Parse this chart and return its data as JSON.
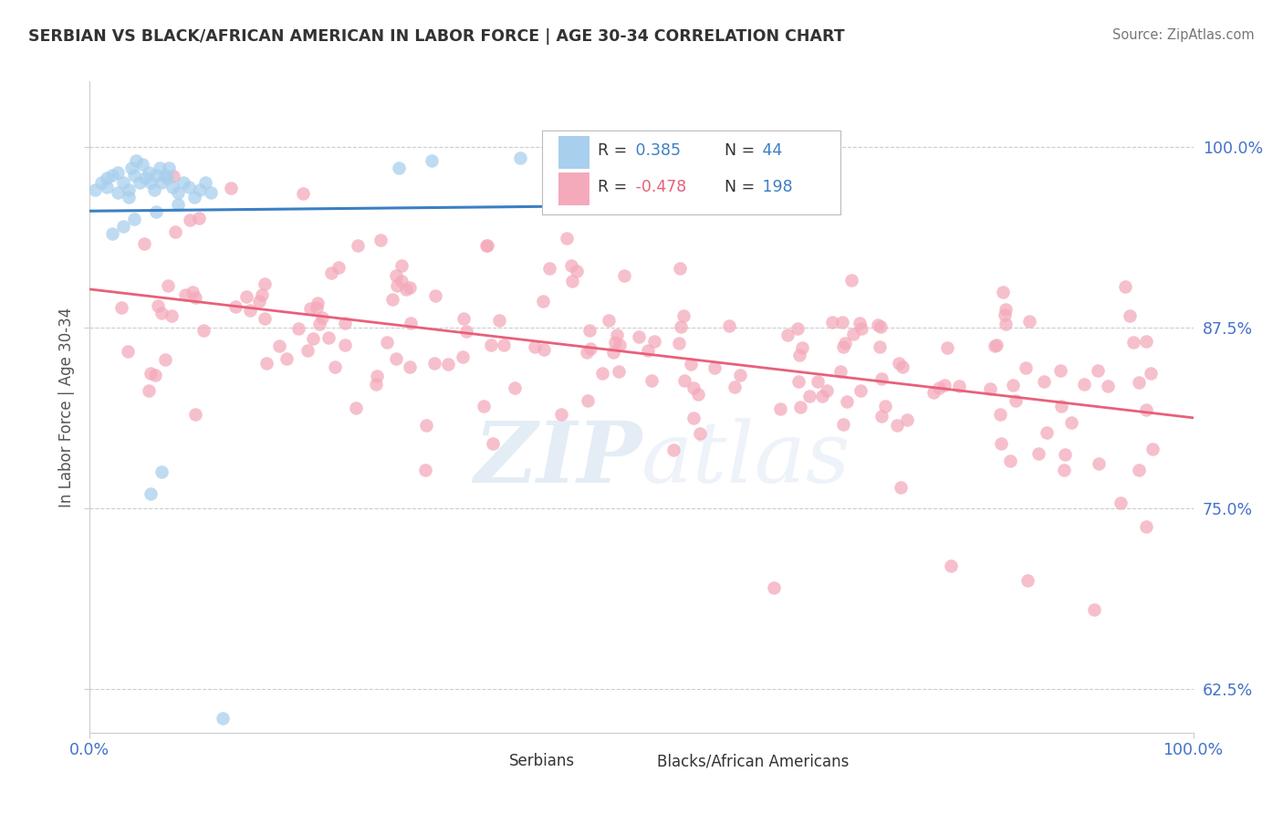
{
  "title": "SERBIAN VS BLACK/AFRICAN AMERICAN IN LABOR FORCE | AGE 30-34 CORRELATION CHART",
  "source": "Source: ZipAtlas.com",
  "ylabel": "In Labor Force | Age 30-34",
  "xlim": [
    0.0,
    1.0
  ],
  "ylim": [
    0.595,
    1.045
  ],
  "yticks": [
    0.625,
    0.75,
    0.875,
    1.0
  ],
  "ytick_labels": [
    "62.5%",
    "75.0%",
    "87.5%",
    "100.0%"
  ],
  "blue_color": "#A8CFED",
  "pink_color": "#F4AABB",
  "blue_line_color": "#3B7FC4",
  "pink_line_color": "#E8607A",
  "r_blue": 0.385,
  "n_blue": 44,
  "r_pink": -0.478,
  "n_pink": 198,
  "legend_labels": [
    "Serbians",
    "Blacks/African Americans"
  ],
  "watermark": "ZIPatlas",
  "blue_R_color": "#3B7FC4",
  "pink_R_color": "#E8607A",
  "N_color": "#3B7FC4",
  "title_color": "#333333",
  "source_color": "#777777",
  "axis_label_color": "#4472CA",
  "ytick_color": "#4472CA",
  "background_color": "#FFFFFF",
  "grid_color": "#CCCCCC"
}
